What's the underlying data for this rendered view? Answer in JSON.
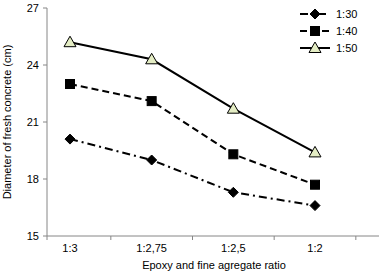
{
  "chart_data": {
    "type": "line",
    "x_label": "Epoxy and fine agregate ratio",
    "y_label": "Diameter of fresh concrete (cm)",
    "categories": [
      "1:3",
      "1:2,75",
      "1:2,5",
      "1:2"
    ],
    "series": [
      {
        "name": "1:30",
        "color": "#000000",
        "marker": "diamond",
        "line_style": "dashdot",
        "values": [
          20.1,
          19.0,
          17.3,
          16.6
        ]
      },
      {
        "name": "1:40",
        "color": "#000000",
        "marker": "square",
        "line_style": "dashed",
        "values": [
          23.0,
          22.1,
          19.3,
          17.7
        ]
      },
      {
        "name": "1:50",
        "color": "#000000",
        "marker": "triangle",
        "line_style": "solid",
        "values": [
          25.2,
          24.3,
          21.7,
          19.4
        ]
      }
    ],
    "ylim": [
      15,
      27
    ],
    "yticks": [
      15,
      18,
      21,
      24,
      27
    ],
    "grid": false,
    "legend": "upper right"
  }
}
